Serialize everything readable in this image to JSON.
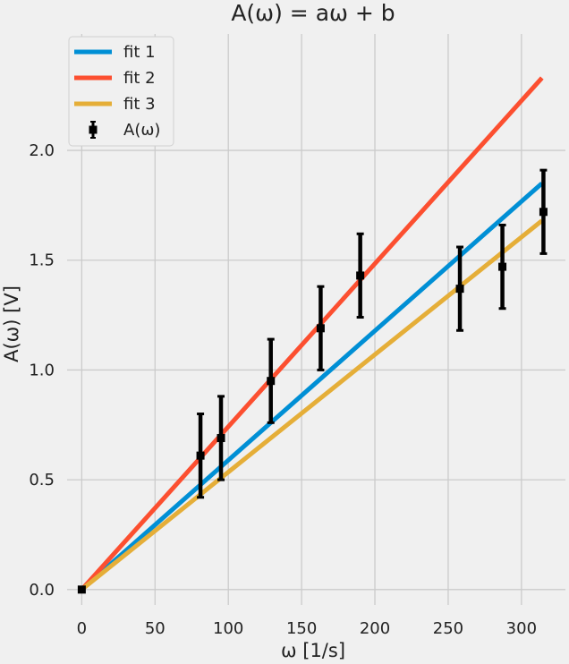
{
  "chart_data": {
    "type": "line",
    "title": "A(ω) = aω + b",
    "xlabel": "ω [1/s]",
    "ylabel": "A(ω) [V]",
    "xlim": [
      -10,
      330
    ],
    "ylim": [
      -0.07,
      2.53
    ],
    "x_ticks": [
      0,
      50,
      100,
      150,
      200,
      250,
      300
    ],
    "x_tick_labels": [
      "0",
      "50",
      "100",
      "150",
      "200",
      "250",
      "300"
    ],
    "y_ticks": [
      0.0,
      0.5,
      1.0,
      1.5,
      2.0
    ],
    "y_tick_labels": [
      "0.0",
      "0.5",
      "1.0",
      "1.5",
      "2.0"
    ],
    "grid": true,
    "legend_position": "top-left",
    "series": [
      {
        "name": "fit 1",
        "kind": "line",
        "color": "#008fd5",
        "x": [
          0,
          314
        ],
        "y": [
          0.0,
          1.85
        ]
      },
      {
        "name": "fit 2",
        "kind": "line",
        "color": "#fc4f30",
        "x": [
          0,
          314
        ],
        "y": [
          0.0,
          2.33
        ]
      },
      {
        "name": "fit 3",
        "kind": "line",
        "color": "#e5ae38",
        "x": [
          0,
          314
        ],
        "y": [
          0.0,
          1.68
        ]
      },
      {
        "name": "A(ω)",
        "kind": "errorbar",
        "color": "#000000",
        "x": [
          0,
          81,
          95,
          129,
          163,
          190,
          258,
          287,
          315
        ],
        "y": [
          0.0,
          0.61,
          0.69,
          0.95,
          1.19,
          1.43,
          1.37,
          1.47,
          1.72
        ],
        "yerr": [
          0.0,
          0.19,
          0.19,
          0.19,
          0.19,
          0.19,
          0.19,
          0.19,
          0.19
        ]
      }
    ]
  }
}
